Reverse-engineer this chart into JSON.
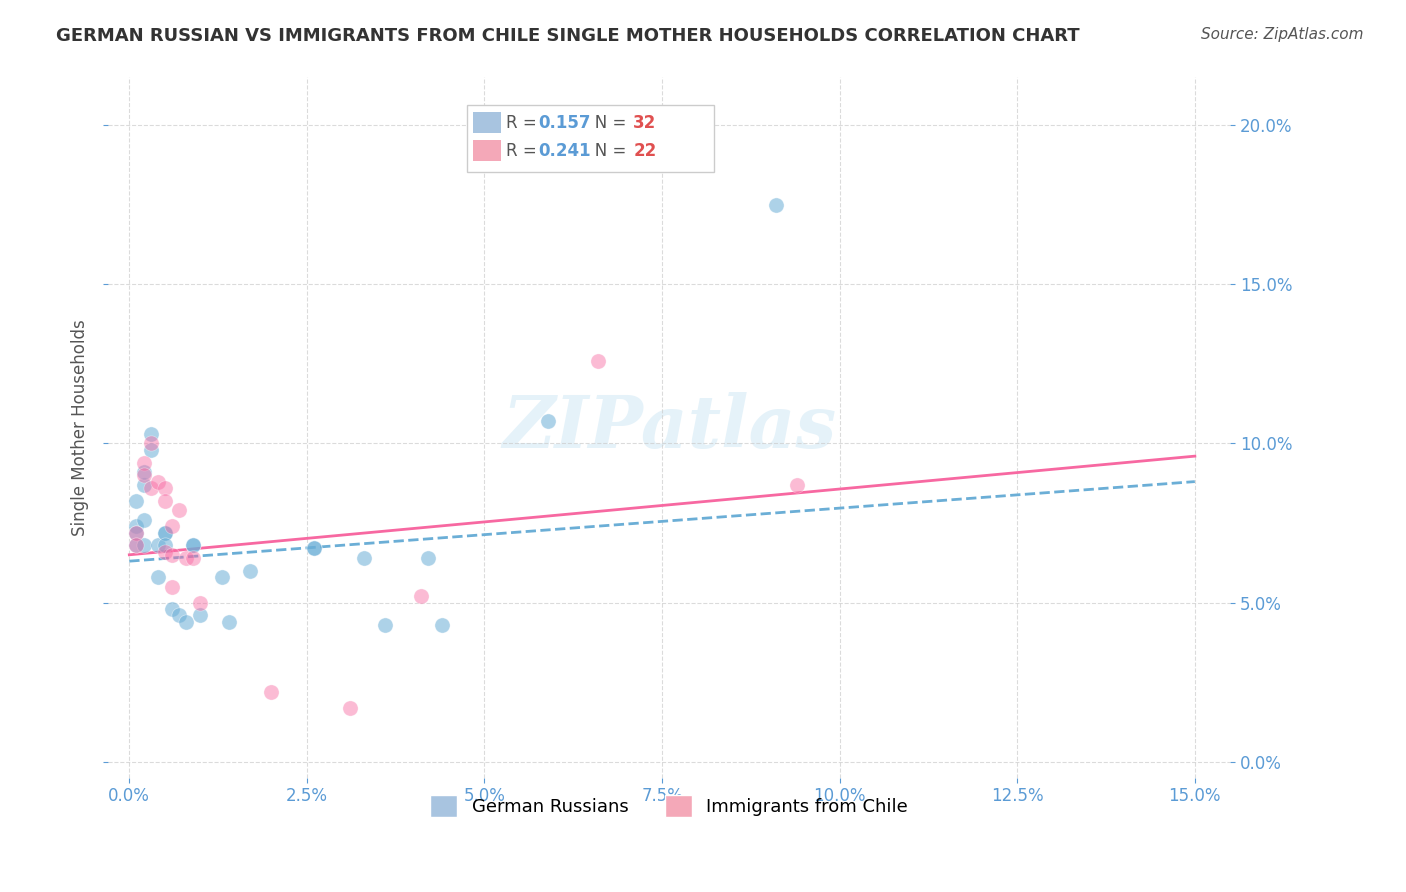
{
  "title": "GERMAN RUSSIAN VS IMMIGRANTS FROM CHILE SINGLE MOTHER HOUSEHOLDS CORRELATION CHART",
  "source": "Source: ZipAtlas.com",
  "ylabel": "Single Mother Households",
  "xlabel_ticks": [
    0.0,
    0.025,
    0.05,
    0.075,
    0.1,
    0.125,
    0.15
  ],
  "ylabel_ticks": [
    0.0,
    0.05,
    0.1,
    0.15,
    0.2
  ],
  "xlim": [
    -0.003,
    0.155
  ],
  "ylim": [
    -0.005,
    0.215
  ],
  "legend_entries": [
    {
      "label": "R = 0.157   N = 32",
      "color": "#a8c4e0"
    },
    {
      "label": "R = 0.241   N = 22",
      "color": "#f4a8b8"
    }
  ],
  "legend_label_blue": "German Russians",
  "legend_label_pink": "Immigrants from Chile",
  "blue_color": "#6baed6",
  "pink_color": "#f768a1",
  "blue_scatter": [
    [
      0.001,
      0.074
    ],
    [
      0.001,
      0.072
    ],
    [
      0.001,
      0.082
    ],
    [
      0.001,
      0.068
    ],
    [
      0.002,
      0.087
    ],
    [
      0.002,
      0.091
    ],
    [
      0.002,
      0.076
    ],
    [
      0.002,
      0.068
    ],
    [
      0.003,
      0.103
    ],
    [
      0.003,
      0.098
    ],
    [
      0.004,
      0.068
    ],
    [
      0.004,
      0.058
    ],
    [
      0.005,
      0.072
    ],
    [
      0.005,
      0.072
    ],
    [
      0.005,
      0.068
    ],
    [
      0.006,
      0.048
    ],
    [
      0.007,
      0.046
    ],
    [
      0.008,
      0.044
    ],
    [
      0.009,
      0.068
    ],
    [
      0.009,
      0.068
    ],
    [
      0.01,
      0.046
    ],
    [
      0.013,
      0.058
    ],
    [
      0.014,
      0.044
    ],
    [
      0.017,
      0.06
    ],
    [
      0.026,
      0.067
    ],
    [
      0.026,
      0.067
    ],
    [
      0.033,
      0.064
    ],
    [
      0.036,
      0.043
    ],
    [
      0.042,
      0.064
    ],
    [
      0.044,
      0.043
    ],
    [
      0.059,
      0.107
    ],
    [
      0.091,
      0.175
    ]
  ],
  "pink_scatter": [
    [
      0.001,
      0.072
    ],
    [
      0.001,
      0.068
    ],
    [
      0.002,
      0.094
    ],
    [
      0.002,
      0.09
    ],
    [
      0.003,
      0.1
    ],
    [
      0.003,
      0.086
    ],
    [
      0.004,
      0.088
    ],
    [
      0.005,
      0.086
    ],
    [
      0.005,
      0.082
    ],
    [
      0.005,
      0.066
    ],
    [
      0.006,
      0.074
    ],
    [
      0.006,
      0.065
    ],
    [
      0.006,
      0.055
    ],
    [
      0.007,
      0.079
    ],
    [
      0.008,
      0.064
    ],
    [
      0.009,
      0.064
    ],
    [
      0.01,
      0.05
    ],
    [
      0.02,
      0.022
    ],
    [
      0.031,
      0.017
    ],
    [
      0.041,
      0.052
    ],
    [
      0.066,
      0.126
    ],
    [
      0.094,
      0.087
    ]
  ],
  "blue_line_x": [
    0.0,
    0.15
  ],
  "blue_line_y": [
    0.063,
    0.088
  ],
  "pink_line_x": [
    0.0,
    0.15
  ],
  "pink_line_y": [
    0.065,
    0.096
  ],
  "watermark": "ZIPatlas",
  "background_color": "#ffffff",
  "grid_color": "#cccccc"
}
